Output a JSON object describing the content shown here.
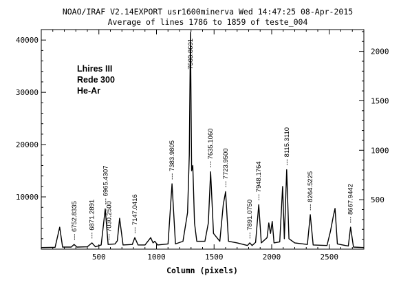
{
  "chart_data": {
    "type": "line",
    "header_line1": "NOAO/IRAF V2.14EXPORT usr1600minerva Wed 14:47:25 08-Apr-2015",
    "header_line2": "Average of lines 1786 to 1859 of teste_004",
    "xlabel": "Column (pixels)",
    "xlim": [
      0,
      2800
    ],
    "ylim": [
      0,
      42000
    ],
    "y2lim": [
      0,
      2220
    ],
    "x_ticks": [
      500,
      1000,
      1500,
      2000,
      2500
    ],
    "y_ticks": [
      10000,
      20000,
      30000,
      40000
    ],
    "y2_ticks": [
      500,
      1000,
      1500,
      2000
    ],
    "annotation_box": [
      "Lhires III",
      "Rede 300",
      "He-Ar"
    ],
    "series": [
      {
        "values": [
          [
            0,
            300
          ],
          [
            120,
            350
          ],
          [
            160,
            4200
          ],
          [
            185,
            400
          ],
          [
            260,
            400
          ],
          [
            285,
            900
          ],
          [
            310,
            400
          ],
          [
            400,
            450
          ],
          [
            440,
            1200
          ],
          [
            470,
            450
          ],
          [
            520,
            800
          ],
          [
            555,
            7700
          ],
          [
            580,
            900
          ],
          [
            640,
            1000
          ],
          [
            660,
            1600
          ],
          [
            680,
            5900
          ],
          [
            710,
            800
          ],
          [
            790,
            900
          ],
          [
            812,
            2200
          ],
          [
            840,
            800
          ],
          [
            900,
            800
          ],
          [
            950,
            2200
          ],
          [
            970,
            1200
          ],
          [
            985,
            1500
          ],
          [
            1010,
            800
          ],
          [
            1100,
            1000
          ],
          [
            1135,
            12500
          ],
          [
            1165,
            1000
          ],
          [
            1230,
            1500
          ],
          [
            1270,
            7000
          ],
          [
            1285,
            18000
          ],
          [
            1295,
            41500
          ],
          [
            1305,
            15000
          ],
          [
            1315,
            16000
          ],
          [
            1330,
            5000
          ],
          [
            1350,
            1500
          ],
          [
            1420,
            1500
          ],
          [
            1450,
            5000
          ],
          [
            1470,
            14800
          ],
          [
            1495,
            3000
          ],
          [
            1550,
            1500
          ],
          [
            1580,
            8500
          ],
          [
            1600,
            11000
          ],
          [
            1625,
            1500
          ],
          [
            1700,
            1200
          ],
          [
            1790,
            700
          ],
          [
            1810,
            1200
          ],
          [
            1830,
            700
          ],
          [
            1860,
            1300
          ],
          [
            1888,
            8500
          ],
          [
            1910,
            1200
          ],
          [
            1960,
            2200
          ],
          [
            1975,
            5000
          ],
          [
            1990,
            3000
          ],
          [
            2005,
            5300
          ],
          [
            2020,
            1200
          ],
          [
            2070,
            1400
          ],
          [
            2095,
            12000
          ],
          [
            2110,
            2000
          ],
          [
            2130,
            15200
          ],
          [
            2150,
            2000
          ],
          [
            2200,
            1200
          ],
          [
            2310,
            900
          ],
          [
            2335,
            6600
          ],
          [
            2360,
            800
          ],
          [
            2480,
            700
          ],
          [
            2510,
            3400
          ],
          [
            2535,
            6300
          ],
          [
            2550,
            7800
          ],
          [
            2570,
            1000
          ],
          [
            2640,
            700
          ],
          [
            2665,
            600
          ],
          [
            2685,
            4200
          ],
          [
            2710,
            400
          ],
          [
            2800,
            300
          ]
        ]
      }
    ],
    "line_labels": [
      {
        "x": 287,
        "text": "6752.8335"
      },
      {
        "x": 440,
        "text": "6871.2891"
      },
      {
        "x": 557,
        "text": "6965.4307"
      },
      {
        "x": 587,
        "text": "7030.2500"
      },
      {
        "x": 812,
        "text": "7147.0416"
      },
      {
        "x": 1135,
        "text": "7383.9805"
      },
      {
        "x": 1295,
        "text": "7503.8691"
      },
      {
        "x": 1470,
        "text": "7635.1060"
      },
      {
        "x": 1600,
        "text": "7723.9500"
      },
      {
        "x": 1810,
        "text": "7891.0750"
      },
      {
        "x": 1888,
        "text": "7948.1764"
      },
      {
        "x": 2130,
        "text": "8115.3110"
      },
      {
        "x": 2335,
        "text": "8264.5225"
      },
      {
        "x": 2685,
        "text": "8667.9442"
      }
    ]
  }
}
